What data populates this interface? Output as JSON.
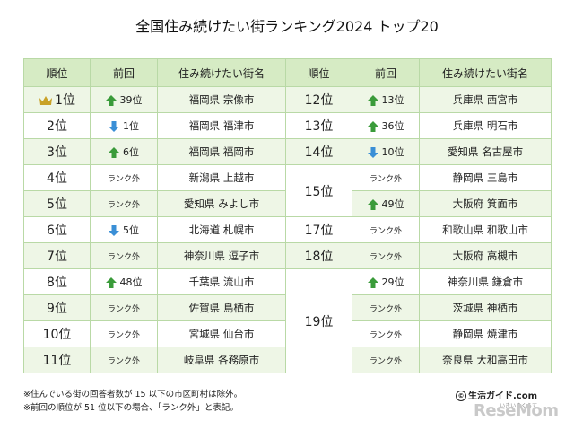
{
  "title": "全国住み続けたい街ランキング2024 トップ20",
  "headers": {
    "rank": "順位",
    "prev": "前回",
    "city": "住み続けたい街名"
  },
  "colors": {
    "header_bg": "#d6ebc4",
    "row_alt": "#eef6e6",
    "border": "#b9d9a6",
    "up": "#3a9b3a",
    "down": "#3a8fd6",
    "crown": "#c9a227"
  },
  "left_rows": [
    {
      "rank": "1位",
      "prev": "39位",
      "dir": "up",
      "city": "福岡県 宗像市",
      "crown": true
    },
    {
      "rank": "2位",
      "prev": "1位",
      "dir": "down",
      "city": "福岡県 福津市"
    },
    {
      "rank": "3位",
      "prev": "6位",
      "dir": "up",
      "city": "福岡県 福岡市"
    },
    {
      "rank": "4位",
      "prev": "ランク外",
      "dir": "none",
      "city": "新潟県 上越市"
    },
    {
      "rank": "5位",
      "prev": "ランク外",
      "dir": "none",
      "city": "愛知県 みよし市"
    },
    {
      "rank": "6位",
      "prev": "5位",
      "dir": "down",
      "city": "北海道 札幌市"
    },
    {
      "rank": "7位",
      "prev": "ランク外",
      "dir": "none",
      "city": "神奈川県 逗子市"
    },
    {
      "rank": "8位",
      "prev": "48位",
      "dir": "up",
      "city": "千葉県 流山市"
    },
    {
      "rank": "9位",
      "prev": "ランク外",
      "dir": "none",
      "city": "佐賀県 鳥栖市"
    },
    {
      "rank": "10位",
      "prev": "ランク外",
      "dir": "none",
      "city": "宮城県 仙台市"
    },
    {
      "rank": "11位",
      "prev": "ランク外",
      "dir": "none",
      "city": "岐阜県 各務原市"
    }
  ],
  "right_rows": [
    {
      "rank": "12位",
      "prev": "13位",
      "dir": "up",
      "city": "兵庫県 西宮市"
    },
    {
      "rank": "13位",
      "prev": "36位",
      "dir": "up",
      "city": "兵庫県 明石市"
    },
    {
      "rank": "14位",
      "prev": "10位",
      "dir": "down",
      "city": "愛知県 名古屋市"
    },
    {
      "rank": "15位",
      "prev": "ランク外",
      "dir": "none",
      "city": "静岡県 三島市"
    },
    {
      "rank": "",
      "prev": "49位",
      "dir": "up",
      "city": "大阪府 箕面市"
    },
    {
      "rank": "17位",
      "prev": "ランク外",
      "dir": "none",
      "city": "和歌山県 和歌山市"
    },
    {
      "rank": "18位",
      "prev": "ランク外",
      "dir": "none",
      "city": "大阪府 高槻市"
    },
    {
      "rank": "19位",
      "prev": "29位",
      "dir": "up",
      "city": "神奈川県 鎌倉市"
    },
    {
      "rank": "",
      "prev": "ランク外",
      "dir": "none",
      "city": "茨城県 神栖市"
    },
    {
      "rank": "",
      "prev": "ランク外",
      "dir": "none",
      "city": "静岡県 焼津市"
    },
    {
      "rank": "",
      "prev": "ランク外",
      "dir": "none",
      "city": "奈良県 大和高田市"
    }
  ],
  "notes": [
    "※住んでいる街の回答者数が 15 以下の市区町村は除外。",
    "※前回の順位が 51 位以下の場合、「ランク外」と表記。"
  ],
  "logo_text": "生活ガイド.com",
  "logo_circle": "©",
  "logo_small": "いきいきくらす",
  "brand": "ReseMom"
}
